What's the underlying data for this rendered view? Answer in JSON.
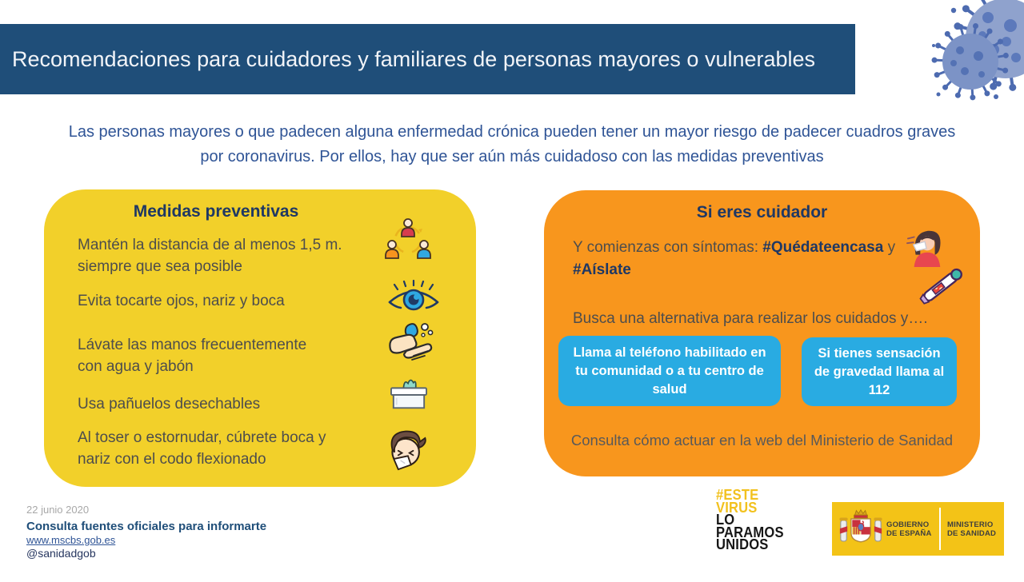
{
  "header": {
    "title": "Recomendaciones para cuidadores y familiares de personas mayores o vulnerables"
  },
  "subtitle": {
    "line1": "Las personas mayores o que padecen alguna enfermedad crónica pueden tener un mayor riesgo de padecer cuadros graves",
    "line2": "por coronavirus. Por ellos, hay que ser aún más cuidadoso con las medidas preventivas"
  },
  "preventive_card": {
    "title": "Medidas preventivas",
    "items": [
      {
        "text": "Mantén la distancia de al menos 1,5 m. siempre que sea posible",
        "icon": "people-distance-icon"
      },
      {
        "text": "Evita tocarte ojos, nariz y boca",
        "icon": "eye-icon"
      },
      {
        "text": "Lávate las manos frecuentemente con agua y jabón",
        "icon": "hand-washing-icon"
      },
      {
        "text": "Usa pañuelos desechables",
        "icon": "tissue-box-icon"
      },
      {
        "text": "Al toser o estornudar, cúbrete boca y nariz con el codo flexionado",
        "icon": "sneeze-into-elbow-icon"
      }
    ]
  },
  "care_card": {
    "title": "Si eres cuidador",
    "symptoms_prefix": "Y comienzas con síntomas: ",
    "hashtag1": "#Quédateencasa",
    "symptoms_connector": " y ",
    "hashtag2": "#Aíslate",
    "alternative_text": "Busca una alternativa para realizar los cuidados y….",
    "buttons": [
      {
        "label": "Llama al teléfono habilitado en tu comunidad o a tu centro de salud"
      },
      {
        "label": "Si tienes sensación de gravedad llama al 112"
      }
    ],
    "note": "Consulta cómo actuar en la web del Ministerio de Sanidad"
  },
  "footer": {
    "date": "22 junio 2020",
    "sources_title": "Consulta fuentes oficiales para informarte",
    "website": "www.mscbs.gob.es",
    "social_handle": "@sanidadgob"
  },
  "campaign_logo": {
    "lines": [
      "#ESTE",
      "VIRUS",
      "LO",
      "PARAMOS",
      "UNIDOS"
    ]
  },
  "government_logo": {
    "entity_line1": "GOBIERNO",
    "entity_line2": "DE ESPAÑA",
    "ministry_line1": "MINISTERIO",
    "ministry_line2": "DE SANIDAD"
  },
  "colors": {
    "header_navy": "#1F4E79",
    "subtitle_blue": "#2F5496",
    "card_yellow": "#F2D02A",
    "card_orange": "#F8961D",
    "button_blue": "#29ABE2",
    "title_navy": "#1F3864",
    "body_text_gray": "#4D4D4D",
    "campaign_gold": "#F2C11E",
    "logo_gold": "#F3C317"
  }
}
